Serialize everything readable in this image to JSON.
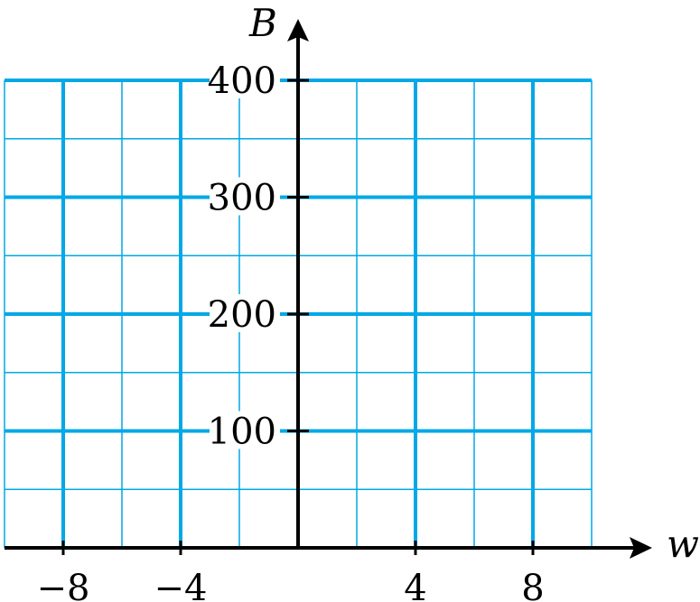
{
  "chart_data": {
    "type": "line",
    "xlabel": "w",
    "ylabel": "B",
    "xlim": [
      -10,
      10
    ],
    "ylim": [
      0,
      400
    ],
    "x_ticks": [
      -8,
      -4,
      4,
      8
    ],
    "x_tick_labels": [
      "−8",
      "−4",
      "4",
      "8"
    ],
    "y_ticks": [
      100,
      200,
      300,
      400
    ],
    "y_tick_labels": [
      "100",
      "200",
      "300",
      "400"
    ],
    "grid": true,
    "grid_minor_x_step": 2,
    "grid_minor_y_step": 50,
    "grid_major_x_step": 4,
    "grid_major_y_step": 100,
    "series": []
  },
  "colors": {
    "grid": "#00a8e6",
    "axis": "#000000",
    "background": "#ffffff"
  }
}
